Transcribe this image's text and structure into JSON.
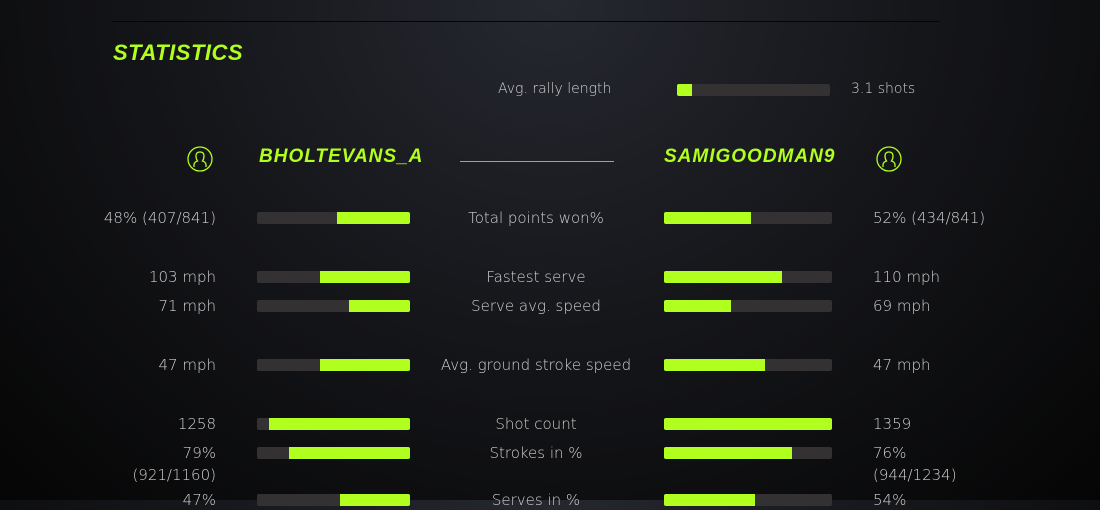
{
  "title": "STATISTICS",
  "accent_color": "#b1ff1f",
  "rally": {
    "label": "Avg. rally length",
    "value": "3.1 shots",
    "fill": 0.1
  },
  "players": {
    "left": {
      "name": "BHOLTEVANS_A",
      "icon": "user-circle-icon"
    },
    "right": {
      "name": "SAMIGOODMAN9",
      "icon": "user-circle-icon"
    }
  },
  "stats": [
    {
      "label": "Total points won%",
      "left": "48% (407/841)",
      "right": "52% (434/841)",
      "left_fill": 0.48,
      "right_fill": 0.52
    },
    {
      "label": "Fastest serve",
      "left": "103 mph",
      "right": "110 mph",
      "left_fill": 0.59,
      "right_fill": 0.7
    },
    {
      "label": "Serve avg. speed",
      "left": "71 mph",
      "right": "69 mph",
      "left_fill": 0.4,
      "right_fill": 0.4
    },
    {
      "label": "Avg. ground stroke speed",
      "left": "47 mph",
      "right": "47 mph",
      "left_fill": 0.59,
      "right_fill": 0.6
    },
    {
      "label": "Shot count",
      "left": "1258",
      "right": "1359",
      "left_fill": 0.92,
      "right_fill": 1.0
    },
    {
      "label": "Strokes in %",
      "left": "79%",
      "left_sub": "(921/1160)",
      "right": "76%",
      "right_sub": "(944/1234)",
      "left_fill": 0.79,
      "right_fill": 0.76
    },
    {
      "label": "Serves in %",
      "left": "47%",
      "right": "54%",
      "left_fill": 0.46,
      "right_fill": 0.54
    }
  ]
}
